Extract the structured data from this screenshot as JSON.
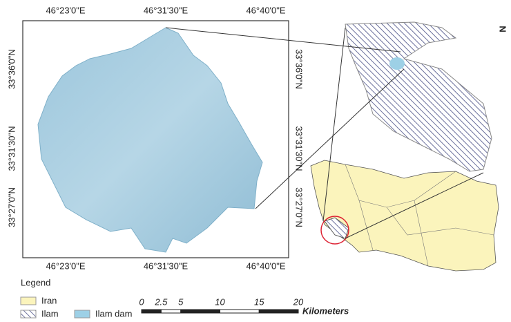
{
  "frame": {
    "top_labels": [
      "46°23'0\"E",
      "46°31'30\"E",
      "46°40'0\"E"
    ],
    "bottom_labels": [
      "46°23'0\"E",
      "46°31'30\"E",
      "46°40'0\"E"
    ],
    "left_labels": [
      "33°36'0\"N",
      "33°31'30\"N",
      "33°27'0\"N"
    ],
    "right_labels": [
      "33°36'0\"N",
      "33°31'30\"N",
      "33°27'0\"N"
    ]
  },
  "north_arrow": "N",
  "legend": {
    "title": "Legend",
    "items": [
      "Iran",
      "Ilam",
      "Ilam dam"
    ]
  },
  "scale_bar": {
    "ticks": [
      0,
      2.5,
      5,
      10,
      15,
      20
    ],
    "unit": "Kilometers"
  }
}
